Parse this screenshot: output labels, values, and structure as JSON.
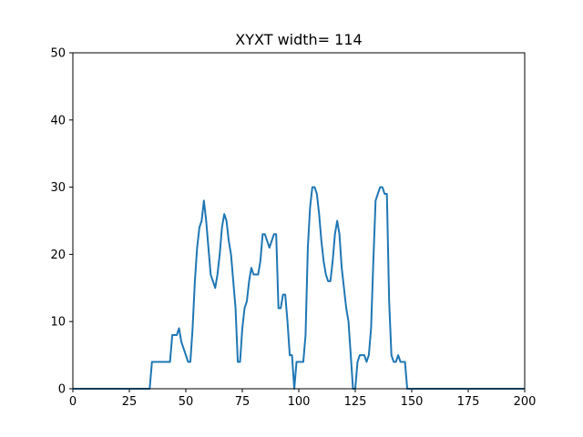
{
  "chart_data": {
    "type": "line",
    "title": "XYXT width= 114",
    "xlabel": "",
    "ylabel": "",
    "xlim": [
      0,
      200
    ],
    "ylim": [
      0,
      50
    ],
    "xticks": [
      0,
      25,
      50,
      75,
      100,
      125,
      150,
      175,
      200
    ],
    "yticks": [
      0,
      10,
      20,
      30,
      40,
      50
    ],
    "grid": false,
    "line_color": "#1f77b4",
    "series": [
      {
        "x": [
          0,
          34,
          35,
          36,
          43,
          44,
          46,
          47,
          48,
          50,
          51,
          52,
          53,
          54,
          55,
          56,
          57,
          58,
          59,
          60,
          61,
          63,
          64,
          65,
          66,
          67,
          68,
          69,
          70,
          71,
          72,
          73,
          74,
          75,
          76,
          77,
          78,
          79,
          80,
          81,
          82,
          83,
          84,
          85,
          86,
          87,
          88,
          89,
          90,
          91,
          92,
          93,
          94,
          95,
          96,
          97,
          98,
          99,
          100,
          101,
          102,
          103,
          104,
          105,
          106,
          107,
          108,
          109,
          110,
          111,
          112,
          113,
          114,
          115,
          116,
          117,
          118,
          119,
          120,
          121,
          122,
          123,
          124,
          125,
          126,
          127,
          128,
          129,
          130,
          131,
          132,
          133,
          134,
          135,
          136,
          137,
          138,
          139,
          140,
          141,
          142,
          143,
          144,
          145,
          146,
          147,
          148,
          149,
          200
        ],
        "y": [
          0,
          0,
          4,
          4,
          4,
          8,
          8,
          9,
          7,
          5,
          4,
          4,
          9,
          16,
          21,
          24,
          25,
          28,
          25,
          21,
          17,
          15,
          17,
          20,
          24,
          26,
          25,
          22,
          20,
          16,
          12,
          4,
          4,
          9,
          12,
          13,
          16,
          18,
          17,
          17,
          17,
          19,
          23,
          23,
          22,
          21,
          22,
          23,
          23,
          12,
          12,
          14,
          14,
          10,
          5,
          5,
          0,
          4,
          4,
          4,
          4,
          8,
          21,
          27,
          30,
          30,
          29,
          26,
          22,
          19,
          17,
          16,
          16,
          19,
          23,
          25,
          23,
          18,
          15,
          12,
          10,
          5,
          0,
          0,
          4,
          5,
          5,
          5,
          4,
          5,
          9,
          19,
          28,
          29,
          30,
          30,
          29,
          29,
          13,
          5,
          4,
          4,
          5,
          4,
          4,
          4,
          0,
          0,
          0
        ]
      }
    ]
  }
}
